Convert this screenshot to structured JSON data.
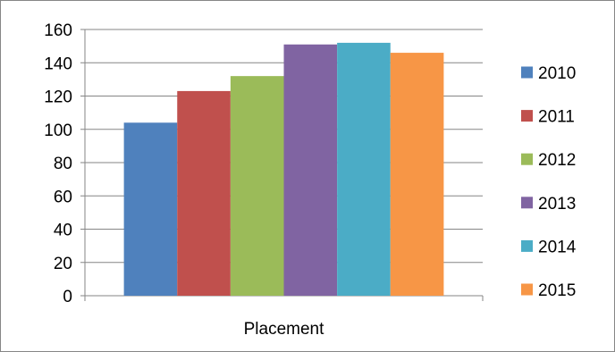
{
  "chart_data": {
    "type": "bar",
    "categories": [
      "Placement"
    ],
    "series": [
      {
        "name": "2010",
        "values": [
          104
        ],
        "color": "#4F81BD"
      },
      {
        "name": "2011",
        "values": [
          123
        ],
        "color": "#C0504D"
      },
      {
        "name": "2012",
        "values": [
          132
        ],
        "color": "#9BBB59"
      },
      {
        "name": "2013",
        "values": [
          151
        ],
        "color": "#8064A2"
      },
      {
        "name": "2014",
        "values": [
          152
        ],
        "color": "#4BACC6"
      },
      {
        "name": "2015",
        "values": [
          146
        ],
        "color": "#F79646"
      }
    ],
    "ylim": [
      0,
      160
    ],
    "yticks": [
      0,
      20,
      40,
      60,
      80,
      100,
      120,
      140,
      160
    ],
    "grid": true,
    "legend": "right"
  }
}
